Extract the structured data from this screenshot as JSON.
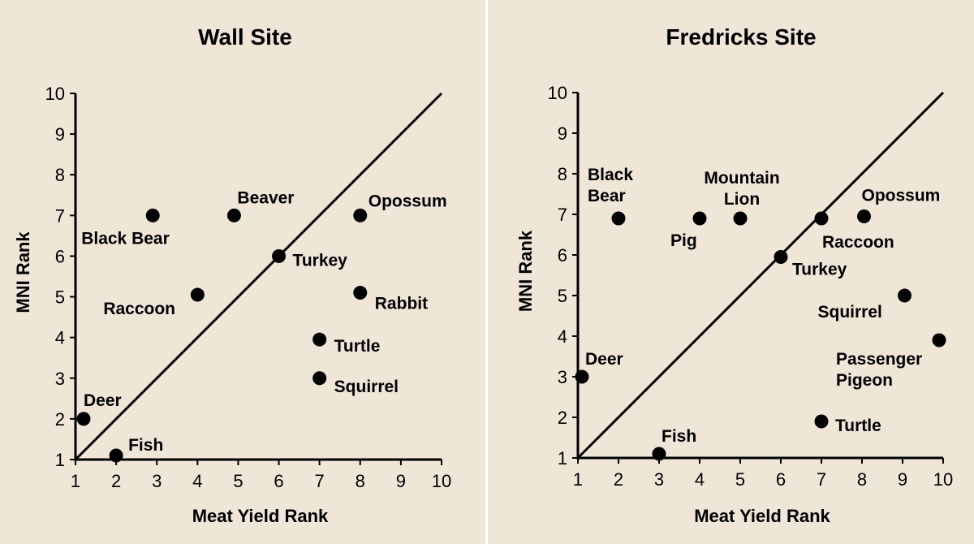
{
  "chart_data": [
    {
      "type": "scatter",
      "title": "Wall Site",
      "xlabel": "Meat Yield Rank",
      "ylabel": "MNI Rank",
      "xlim": [
        1,
        10
      ],
      "ylim": [
        1,
        10
      ],
      "x_ticks": [
        "1",
        "2",
        "3",
        "4",
        "5",
        "6",
        "7",
        "8",
        "9",
        "10"
      ],
      "y_ticks": [
        "1",
        "2",
        "3",
        "4",
        "5",
        "6",
        "7",
        "8",
        "9",
        "10"
      ],
      "reference_line": [
        [
          1,
          1
        ],
        [
          10,
          10
        ]
      ],
      "points": [
        {
          "label": [
            "Black Bear"
          ],
          "x": 2.9,
          "y": 7.0
        },
        {
          "label": [
            "Beaver"
          ],
          "x": 4.9,
          "y": 7.0
        },
        {
          "label": [
            "Opossum"
          ],
          "x": 8.0,
          "y": 7.0
        },
        {
          "label": [
            "Turkey"
          ],
          "x": 6.0,
          "y": 6.0
        },
        {
          "label": [
            "Raccoon"
          ],
          "x": 4.0,
          "y": 5.05
        },
        {
          "label": [
            "Rabbit"
          ],
          "x": 8.0,
          "y": 5.1
        },
        {
          "label": [
            "Turtle"
          ],
          "x": 7.0,
          "y": 3.95
        },
        {
          "label": [
            "Squirrel"
          ],
          "x": 7.0,
          "y": 3.0
        },
        {
          "label": [
            "Deer"
          ],
          "x": 1.2,
          "y": 2.0
        },
        {
          "label": [
            "Fish"
          ],
          "x": 2.0,
          "y": 1.1
        }
      ]
    },
    {
      "type": "scatter",
      "title": "Fredricks Site",
      "xlabel": "Meat Yield Rank",
      "ylabel": "MNI Rank",
      "xlim": [
        1,
        10
      ],
      "ylim": [
        1,
        10
      ],
      "x_ticks": [
        "1",
        "2",
        "3",
        "4",
        "5",
        "6",
        "7",
        "8",
        "9",
        "10"
      ],
      "y_ticks": [
        "1",
        "2",
        "3",
        "4",
        "5",
        "6",
        "7",
        "8",
        "9",
        "10"
      ],
      "reference_line": [
        [
          1,
          1
        ],
        [
          10,
          10
        ]
      ],
      "points": [
        {
          "label": [
            "Black",
            "Bear"
          ],
          "x": 2.0,
          "y": 6.9
        },
        {
          "label": [
            "Pig"
          ],
          "x": 4.0,
          "y": 6.9
        },
        {
          "label": [
            "Mountain",
            "Lion"
          ],
          "x": 5.0,
          "y": 6.9
        },
        {
          "label": [
            "Raccoon"
          ],
          "x": 7.0,
          "y": 6.9
        },
        {
          "label": [
            "Opossum"
          ],
          "x": 8.05,
          "y": 6.95
        },
        {
          "label": [
            "Turkey"
          ],
          "x": 6.0,
          "y": 5.95
        },
        {
          "label": [
            "Squirrel"
          ],
          "x": 9.05,
          "y": 5.0
        },
        {
          "label": [
            "Passenger",
            "Pigeon"
          ],
          "x": 9.9,
          "y": 3.9
        },
        {
          "label": [
            "Deer"
          ],
          "x": 1.1,
          "y": 3.0
        },
        {
          "label": [
            "Turtle"
          ],
          "x": 7.0,
          "y": 1.9
        },
        {
          "label": [
            "Fish"
          ],
          "x": 3.0,
          "y": 1.1
        }
      ]
    }
  ]
}
